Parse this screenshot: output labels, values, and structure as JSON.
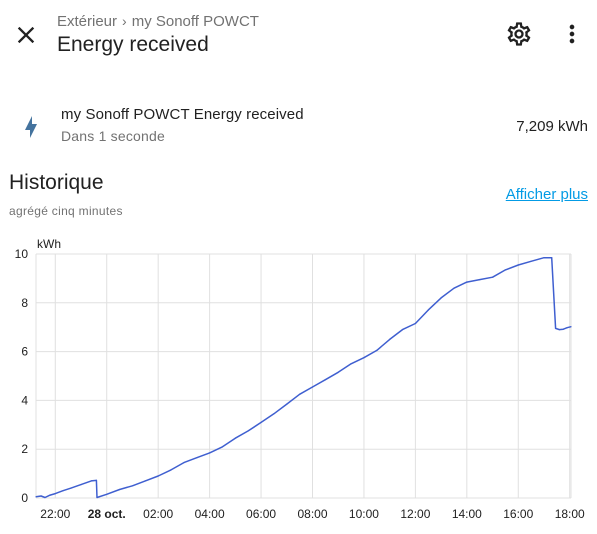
{
  "header": {
    "breadcrumb_area": "Extérieur",
    "breadcrumb_device": "my Sonoff POWCT",
    "title": "Energy received"
  },
  "icons": {
    "close": "close-icon",
    "settings": "gear-icon",
    "more": "dots-vertical-icon",
    "entity": "lightning-bolt-icon"
  },
  "entity": {
    "name": "my Sonoff POWCT Energy received",
    "subtitle": "Dans 1 seconde",
    "state": "7,209 kWh"
  },
  "history": {
    "title": "Historique",
    "subtitle": "agrégé cinq minutes",
    "show_more": "Afficher plus"
  },
  "colors": {
    "line": "#3f5fd0",
    "link": "#039be5",
    "icon": "#44739e",
    "grid": "#e0e0e0"
  },
  "chart_data": {
    "type": "line",
    "unit_label": "kWh",
    "ylim": [
      0,
      10
    ],
    "y_ticks": [
      "0",
      "2",
      "4",
      "6",
      "8",
      "10"
    ],
    "x_range_hours": [
      21.25,
      42.05
    ],
    "x_ticks": [
      {
        "label": "22:00",
        "hour": 22,
        "bold": false
      },
      {
        "label": "28 oct.",
        "hour": 24,
        "bold": true
      },
      {
        "label": "02:00",
        "hour": 26,
        "bold": false
      },
      {
        "label": "04:00",
        "hour": 28,
        "bold": false
      },
      {
        "label": "06:00",
        "hour": 30,
        "bold": false
      },
      {
        "label": "08:00",
        "hour": 32,
        "bold": false
      },
      {
        "label": "10:00",
        "hour": 34,
        "bold": false
      },
      {
        "label": "12:00",
        "hour": 36,
        "bold": false
      },
      {
        "label": "14:00",
        "hour": 38,
        "bold": false
      },
      {
        "label": "16:00",
        "hour": 40,
        "bold": false
      },
      {
        "label": "18:00",
        "hour": 42,
        "bold": false
      }
    ],
    "series": [
      {
        "points": [
          [
            21.25,
            0.05
          ],
          [
            21.45,
            0.08
          ],
          [
            21.6,
            0.02
          ],
          [
            21.8,
            0.12
          ],
          [
            22.0,
            0.18
          ],
          [
            22.3,
            0.3
          ],
          [
            22.6,
            0.4
          ],
          [
            23.0,
            0.55
          ],
          [
            23.4,
            0.7
          ],
          [
            23.6,
            0.72
          ],
          [
            23.62,
            0.02
          ],
          [
            24.0,
            0.15
          ],
          [
            24.5,
            0.35
          ],
          [
            25.0,
            0.5
          ],
          [
            25.5,
            0.7
          ],
          [
            26.0,
            0.9
          ],
          [
            26.5,
            1.15
          ],
          [
            27.0,
            1.45
          ],
          [
            27.5,
            1.65
          ],
          [
            28.0,
            1.85
          ],
          [
            28.5,
            2.1
          ],
          [
            29.0,
            2.45
          ],
          [
            29.5,
            2.75
          ],
          [
            30.0,
            3.1
          ],
          [
            30.5,
            3.45
          ],
          [
            31.0,
            3.85
          ],
          [
            31.5,
            4.25
          ],
          [
            32.0,
            4.55
          ],
          [
            32.5,
            4.85
          ],
          [
            33.0,
            5.15
          ],
          [
            33.5,
            5.5
          ],
          [
            34.0,
            5.75
          ],
          [
            34.5,
            6.05
          ],
          [
            35.0,
            6.5
          ],
          [
            35.5,
            6.9
          ],
          [
            36.0,
            7.15
          ],
          [
            36.5,
            7.7
          ],
          [
            37.0,
            8.2
          ],
          [
            37.5,
            8.6
          ],
          [
            38.0,
            8.85
          ],
          [
            38.5,
            8.95
          ],
          [
            39.0,
            9.05
          ],
          [
            39.5,
            9.35
          ],
          [
            40.0,
            9.55
          ],
          [
            40.5,
            9.7
          ],
          [
            41.0,
            9.85
          ],
          [
            41.3,
            9.85
          ],
          [
            41.45,
            6.95
          ],
          [
            41.6,
            6.9
          ],
          [
            41.75,
            6.92
          ],
          [
            41.9,
            6.98
          ],
          [
            42.05,
            7.02
          ]
        ]
      }
    ]
  }
}
